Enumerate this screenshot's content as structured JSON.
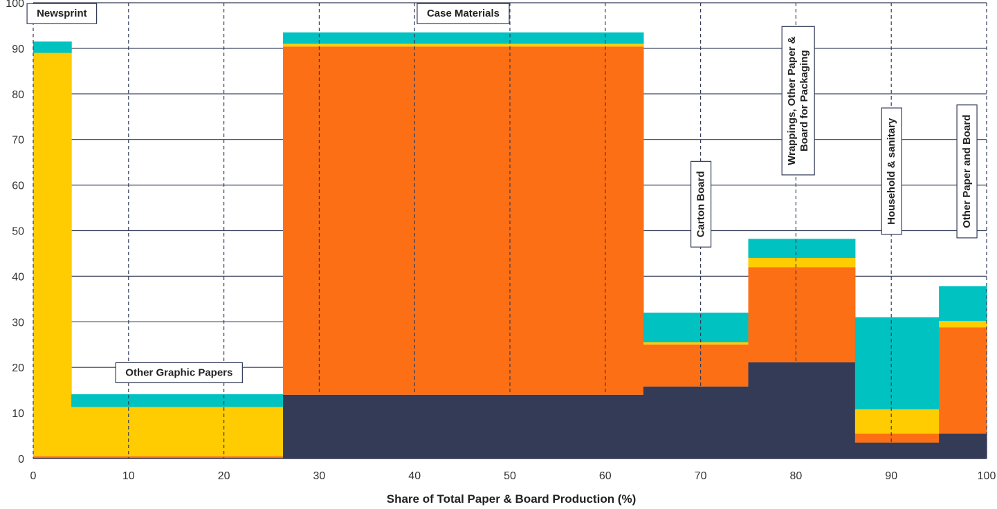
{
  "chart_data": {
    "type": "area",
    "title": "",
    "xlabel": "Share of Total Paper & Board Production (%)",
    "ylabel": "",
    "xlim": [
      0,
      100
    ],
    "ylim": [
      0,
      100
    ],
    "x_ticks": [
      0,
      10,
      20,
      30,
      40,
      50,
      60,
      70,
      80,
      90,
      100
    ],
    "y_ticks": [
      0,
      10,
      20,
      30,
      40,
      50,
      60,
      70,
      80,
      90,
      100
    ],
    "grid": {
      "horizontal": "solid",
      "vertical": "dashed"
    },
    "colors": [
      "#333b57",
      "#fd6f14",
      "#fecc00",
      "#00c2c0"
    ],
    "categories": [
      {
        "label": "Newsprint",
        "x_start": 0,
        "x_end": 4,
        "segments": [
          0,
          0.5,
          88.5,
          2.5
        ]
      },
      {
        "label": "Other Graphic Papers",
        "x_start": 4,
        "x_end": 26.2,
        "segments": [
          0,
          0.5,
          10.8,
          2.8
        ]
      },
      {
        "label": "Case Materials",
        "x_start": 26.2,
        "x_end": 64,
        "segments": [
          14,
          76.4,
          0.6,
          2.5
        ]
      },
      {
        "label": "Carton Board",
        "x_start": 64,
        "x_end": 75,
        "segments": [
          15.8,
          9.2,
          0.5,
          6.5
        ]
      },
      {
        "label": "Wrappings, Other Paper & Board for Packaging",
        "x_start": 75,
        "x_end": 86.2,
        "segments": [
          21.1,
          20.9,
          2,
          4.2
        ]
      },
      {
        "label": "Household & sanitary",
        "x_start": 86.2,
        "x_end": 95,
        "segments": [
          3.5,
          2,
          5.3,
          20.2
        ]
      },
      {
        "label": "Other Paper and Board",
        "x_start": 95,
        "x_end": 100,
        "segments": [
          5.5,
          23.3,
          1.4,
          7.6
        ]
      }
    ],
    "annotations": [
      {
        "text": "Newsprint",
        "lines": [
          "Newsprint"
        ],
        "orientation": "horizontal",
        "x": 3,
        "y": 97.7
      },
      {
        "text": "Other Graphic Papers",
        "lines": [
          "Other Graphic Papers"
        ],
        "orientation": "horizontal",
        "x": 15.3,
        "y": 18.9
      },
      {
        "text": "Case Materials",
        "lines": [
          "Case Materials"
        ],
        "orientation": "horizontal",
        "x": 45.1,
        "y": 97.7
      },
      {
        "text": "Carton Board",
        "lines": [
          "Carton Board"
        ],
        "orientation": "vertical",
        "x": 70.0,
        "y": 55.8
      },
      {
        "text": "Wrappings, Other Paper & Board for Packaging",
        "lines": [
          "Wrappings, Other Paper &",
          "Board for Packaging"
        ],
        "orientation": "vertical",
        "x": 80.2,
        "y": 78.5
      },
      {
        "text": "Household & sanitary",
        "lines": [
          "Household & sanitary"
        ],
        "orientation": "vertical",
        "x": 90.0,
        "y": 63.0
      },
      {
        "text": "Other Paper and Board",
        "lines": [
          "Other  Paper and  Board"
        ],
        "orientation": "vertical",
        "x": 97.9,
        "y": 63.0
      }
    ]
  }
}
